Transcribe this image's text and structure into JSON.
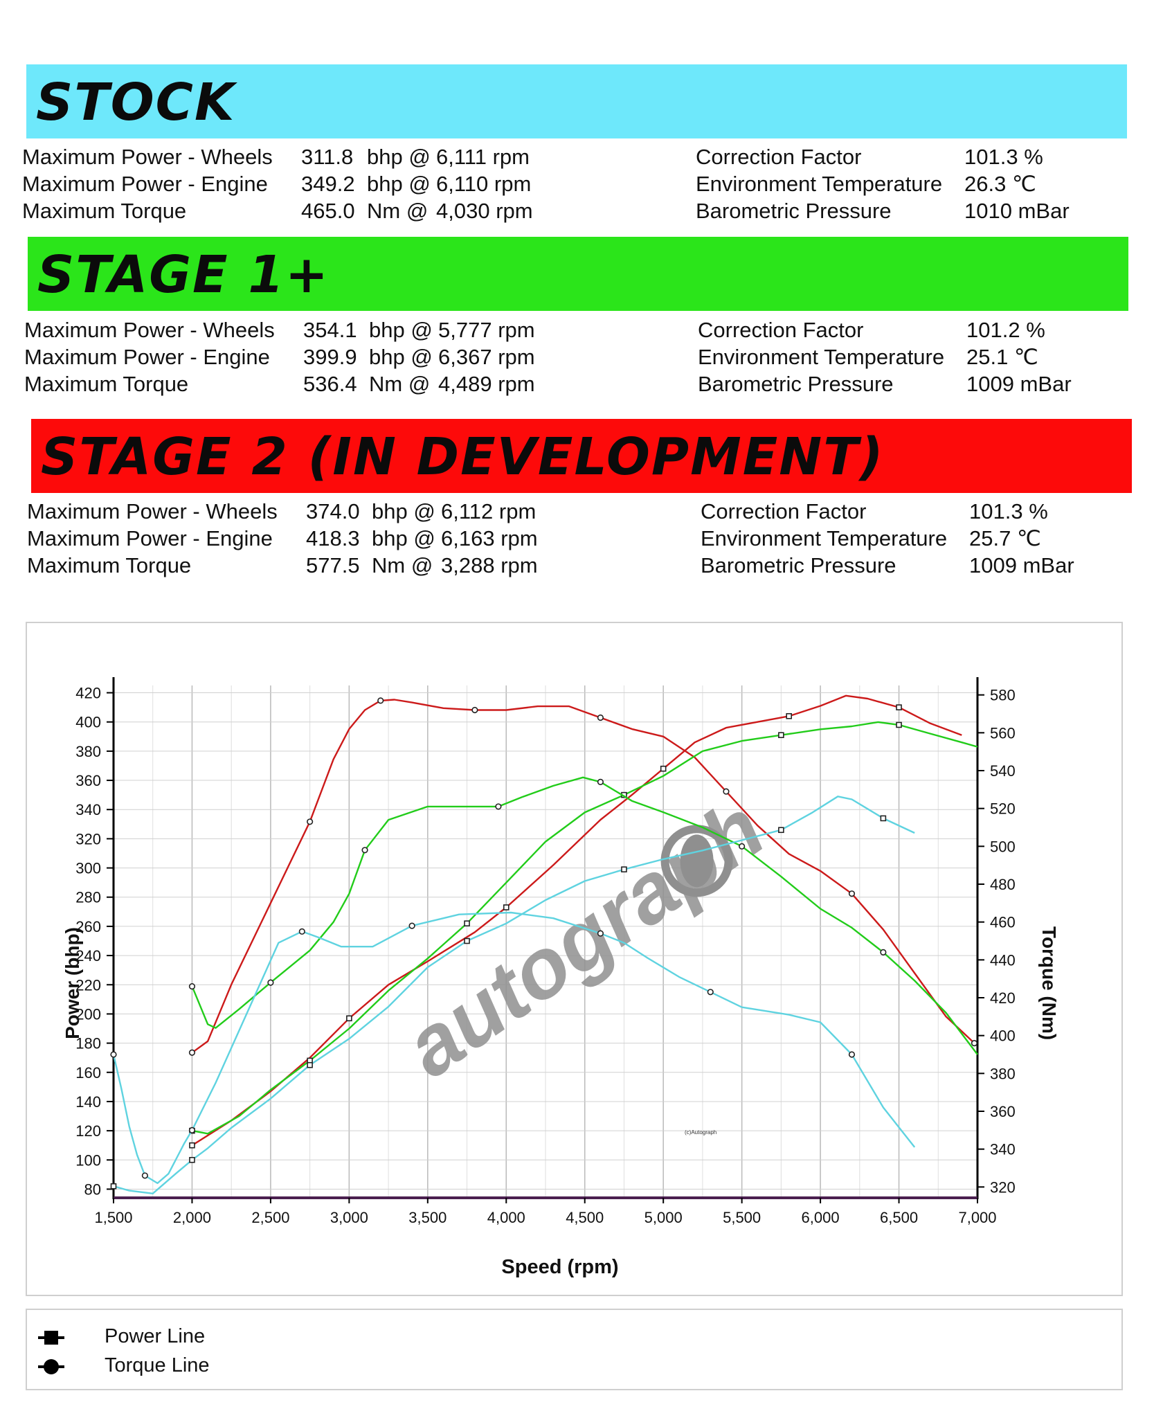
{
  "sections": [
    {
      "title": "STOCK",
      "color": "#6ee8fb",
      "rows": [
        {
          "label": "Maximum Power - Wheels",
          "value": "311.8",
          "unit": "bhp @",
          "rpm": "6,111 rpm",
          "right_label": "Correction Factor",
          "right_value": "101.3 %"
        },
        {
          "label": "Maximum Power - Engine",
          "value": "349.2",
          "unit": "bhp @",
          "rpm": "6,110 rpm",
          "right_label": "Environment Temperature",
          "right_value": "26.3 ℃"
        },
        {
          "label": "Maximum Torque",
          "value": "465.0",
          "unit": "Nm @",
          "rpm": "4,030 rpm",
          "right_label": "Barometric Pressure",
          "right_value": "1010 mBar"
        }
      ]
    },
    {
      "title": "STAGE 1+",
      "color": "#2be51a",
      "rows": [
        {
          "label": "Maximum Power - Wheels",
          "value": "354.1",
          "unit": "bhp @",
          "rpm": "5,777 rpm",
          "right_label": "Correction Factor",
          "right_value": "101.2 %"
        },
        {
          "label": "Maximum Power - Engine",
          "value": "399.9",
          "unit": "bhp @",
          "rpm": "6,367 rpm",
          "right_label": "Environment Temperature",
          "right_value": "25.1 ℃"
        },
        {
          "label": "Maximum Torque",
          "value": "536.4",
          "unit": "Nm @",
          "rpm": "4,489 rpm",
          "right_label": "Barometric Pressure",
          "right_value": "1009 mBar"
        }
      ]
    },
    {
      "title": "STAGE 2 (IN DEVELOPMENT)",
      "color": "#fd0a0a",
      "rows": [
        {
          "label": "Maximum Power - Wheels",
          "value": "374.0",
          "unit": "bhp @",
          "rpm": "6,112 rpm",
          "right_label": "Correction Factor",
          "right_value": "101.3 %"
        },
        {
          "label": "Maximum Power - Engine",
          "value": "418.3",
          "unit": "bhp @",
          "rpm": "6,163 rpm",
          "right_label": "Environment Temperature",
          "right_value": "25.7 ℃"
        },
        {
          "label": "Maximum Torque",
          "value": "577.5",
          "unit": "Nm @",
          "rpm": "3,288 rpm",
          "right_label": "Barometric Pressure",
          "right_value": "1009 mBar"
        }
      ]
    }
  ],
  "chart_data": {
    "type": "line",
    "xlabel": "Speed (rpm)",
    "ylabel": "Power (bhp)",
    "y2label": "Torque (Nm)",
    "xlim": [
      1500,
      7000
    ],
    "ylim": [
      75,
      425
    ],
    "y2lim": [
      315,
      585
    ],
    "x_ticks": [
      1500,
      2000,
      2500,
      3000,
      3500,
      4000,
      4500,
      5000,
      5500,
      6000,
      6500,
      7000
    ],
    "x_tick_labels": [
      "1,500",
      "2,000",
      "2,500",
      "3,000",
      "3,500",
      "4,000",
      "4,500",
      "5,000",
      "5,500",
      "6,000",
      "6,500",
      "7,000"
    ],
    "y_ticks": [
      80,
      100,
      120,
      140,
      160,
      180,
      200,
      220,
      240,
      260,
      280,
      300,
      320,
      340,
      360,
      380,
      400,
      420
    ],
    "y2_ticks": [
      320,
      340,
      360,
      380,
      400,
      420,
      440,
      460,
      480,
      500,
      520,
      540,
      560,
      580
    ],
    "grid": true,
    "watermark": "autograph",
    "small_note": "(c)Autograph",
    "legend": [
      {
        "label": "Power Line",
        "marker": "square"
      },
      {
        "label": "Torque Line",
        "marker": "circle"
      }
    ],
    "series": [
      {
        "color": "#cc1a1a",
        "axis": "left",
        "marker": "square",
        "x": [
          2000,
          2250,
          2500,
          2750,
          3000,
          3250,
          3500,
          3800,
          4000,
          4300,
          4600,
          4800,
          5000,
          5200,
          5400,
          5600,
          5800,
          6000,
          6163,
          6300,
          6500,
          6700,
          6900
        ],
        "y": [
          110,
          127,
          147,
          170,
          197,
          220,
          236,
          256,
          273,
          302,
          333,
          350,
          368,
          386,
          396,
          400,
          404,
          411,
          418,
          416,
          410,
          399,
          391
        ]
      },
      {
        "color": "#cc1a1a",
        "axis": "right",
        "marker": "circle",
        "x": [
          2000,
          2100,
          2250,
          2500,
          2750,
          2900,
          3000,
          3100,
          3200,
          3288,
          3400,
          3600,
          3800,
          4000,
          4200,
          4400,
          4600,
          4800,
          5000,
          5200,
          5400,
          5600,
          5800,
          6000,
          6200,
          6400,
          6600,
          6800,
          6980
        ],
        "y": [
          391,
          397,
          427,
          470,
          513,
          546,
          562,
          572,
          577,
          577.5,
          576,
          573,
          572,
          572,
          574,
          574,
          568,
          562,
          558,
          547,
          529,
          511,
          496,
          487,
          475,
          456,
          433,
          410,
          396
        ]
      },
      {
        "color": "#22cc1a",
        "axis": "left",
        "marker": "square",
        "x": [
          2000,
          2100,
          2300,
          2500,
          2750,
          3000,
          3250,
          3500,
          3750,
          4000,
          4250,
          4500,
          4750,
          5000,
          5250,
          5500,
          5750,
          6000,
          6200,
          6367,
          6500,
          6700,
          6900,
          7000
        ],
        "y": [
          120,
          118,
          130,
          148,
          168,
          190,
          216,
          238,
          262,
          290,
          318,
          338,
          350,
          363,
          380,
          387,
          391,
          395,
          397,
          399.9,
          398,
          392,
          386,
          383
        ]
      },
      {
        "color": "#22cc1a",
        "axis": "right",
        "marker": "circle",
        "x": [
          2000,
          2100,
          2150,
          2300,
          2500,
          2750,
          2900,
          3000,
          3100,
          3250,
          3500,
          3750,
          3950,
          4100,
          4300,
          4489,
          4600,
          4800,
          5000,
          5250,
          5500,
          5750,
          6000,
          6200,
          6400,
          6600,
          6800,
          7000
        ],
        "y": [
          426,
          406,
          404,
          414,
          428,
          445,
          460,
          475,
          498,
          514,
          521,
          521,
          521,
          526,
          532,
          536.4,
          534,
          524,
          518,
          510,
          500,
          484,
          467,
          457,
          444,
          429,
          412,
          390
        ]
      },
      {
        "color": "#5fd3e0",
        "axis": "left",
        "marker": "square",
        "x": [
          1500,
          1600,
          1750,
          1900,
          2000,
          2100,
          2250,
          2500,
          2750,
          3000,
          3250,
          3500,
          3750,
          4000,
          4250,
          4500,
          4750,
          5000,
          5250,
          5500,
          5750,
          5950,
          6111,
          6200,
          6400,
          6600
        ],
        "y": [
          82,
          79,
          77,
          91,
          100,
          108,
          122,
          142,
          165,
          183,
          205,
          232,
          250,
          262,
          278,
          291,
          299,
          306,
          312,
          319,
          326,
          338,
          349,
          347,
          334,
          324
        ]
      },
      {
        "color": "#5fd3e0",
        "axis": "right",
        "marker": "circle",
        "x": [
          1500,
          1550,
          1600,
          1650,
          1700,
          1780,
          1850,
          1950,
          2000,
          2150,
          2350,
          2550,
          2700,
          2800,
          2950,
          3150,
          3400,
          3700,
          4030,
          4300,
          4600,
          4750,
          4900,
          5100,
          5300,
          5500,
          5800,
          6000,
          6200,
          6400,
          6600
        ],
        "y": [
          390,
          372,
          352,
          337,
          326,
          322,
          327,
          343,
          350,
          375,
          412,
          449,
          455,
          452,
          447,
          447,
          458,
          464,
          465,
          462,
          454,
          449,
          441,
          431,
          423,
          415,
          411,
          407,
          390,
          362,
          341
        ]
      }
    ]
  }
}
